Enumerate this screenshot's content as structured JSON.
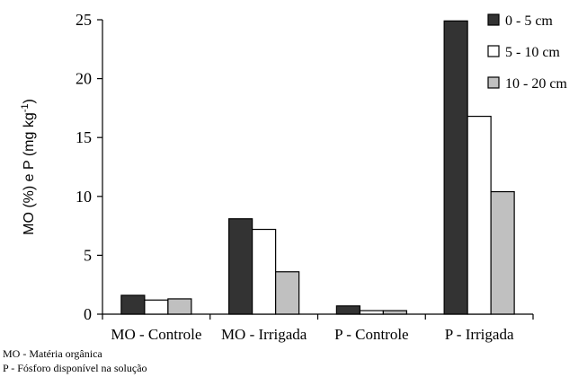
{
  "chart_data": {
    "type": "bar",
    "ylabel_parts": {
      "prefix": "MO (%) e P (mg kg",
      "sup": "-1",
      "suffix": ")"
    },
    "ylim": [
      0,
      25
    ],
    "yticks": [
      "0",
      "5",
      "10",
      "15",
      "20",
      "25"
    ],
    "categories": [
      "MO - Controle",
      "MO - Irrigada",
      "P - Controle",
      "P - Irrigada"
    ],
    "series": [
      {
        "name": "0 - 5 cm",
        "color": "#333333",
        "values": [
          1.6,
          8.1,
          0.7,
          24.9
        ]
      },
      {
        "name": "5 - 10 cm",
        "color": "#ffffff",
        "values": [
          1.2,
          7.2,
          0.3,
          16.8
        ]
      },
      {
        "name": "10 - 20 cm",
        "color": "#c0c0c0",
        "values": [
          1.3,
          3.6,
          0.3,
          10.4
        ]
      }
    ],
    "legend_position": "top-right",
    "grid": false
  },
  "notes": [
    "MO - Matéria orgânica",
    "P - Fósforo disponível na solução"
  ]
}
